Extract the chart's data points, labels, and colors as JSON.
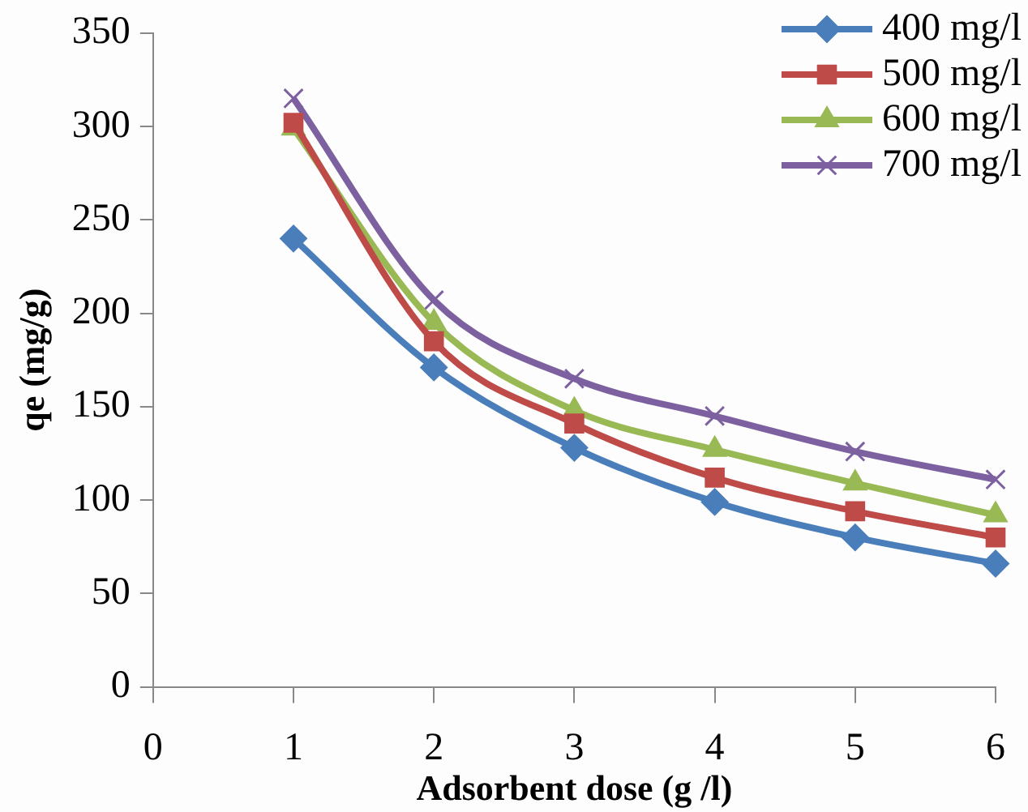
{
  "chart_data": {
    "type": "line",
    "xlabel": "Adsorbent dose (g /l)",
    "ylabel": "qe (mg/g)",
    "x": [
      1,
      2,
      3,
      4,
      5,
      6
    ],
    "xlim": [
      0,
      6
    ],
    "xticks": [
      0,
      1,
      2,
      3,
      4,
      5,
      6
    ],
    "ylim": [
      0,
      350
    ],
    "yticks": [
      0,
      50,
      100,
      150,
      200,
      250,
      300,
      350
    ],
    "grid": false,
    "legend": "top right",
    "series": [
      {
        "name": "400 mg/l",
        "color": "#4a7ebb",
        "marker": "diamond",
        "values": [
          240,
          171,
          128,
          99,
          80,
          66
        ]
      },
      {
        "name": "500 mg/l",
        "color": "#be4b48",
        "marker": "square",
        "values": [
          302,
          185,
          141,
          112,
          94,
          80
        ]
      },
      {
        "name": "600 mg/l",
        "color": "#98b954",
        "marker": "triangle",
        "values": [
          299,
          195,
          148,
          127,
          109,
          92
        ]
      },
      {
        "name": "700 mg/l",
        "color": "#7d60a0",
        "marker": "cross",
        "values": [
          315,
          207,
          165,
          145,
          126,
          111
        ]
      }
    ]
  }
}
